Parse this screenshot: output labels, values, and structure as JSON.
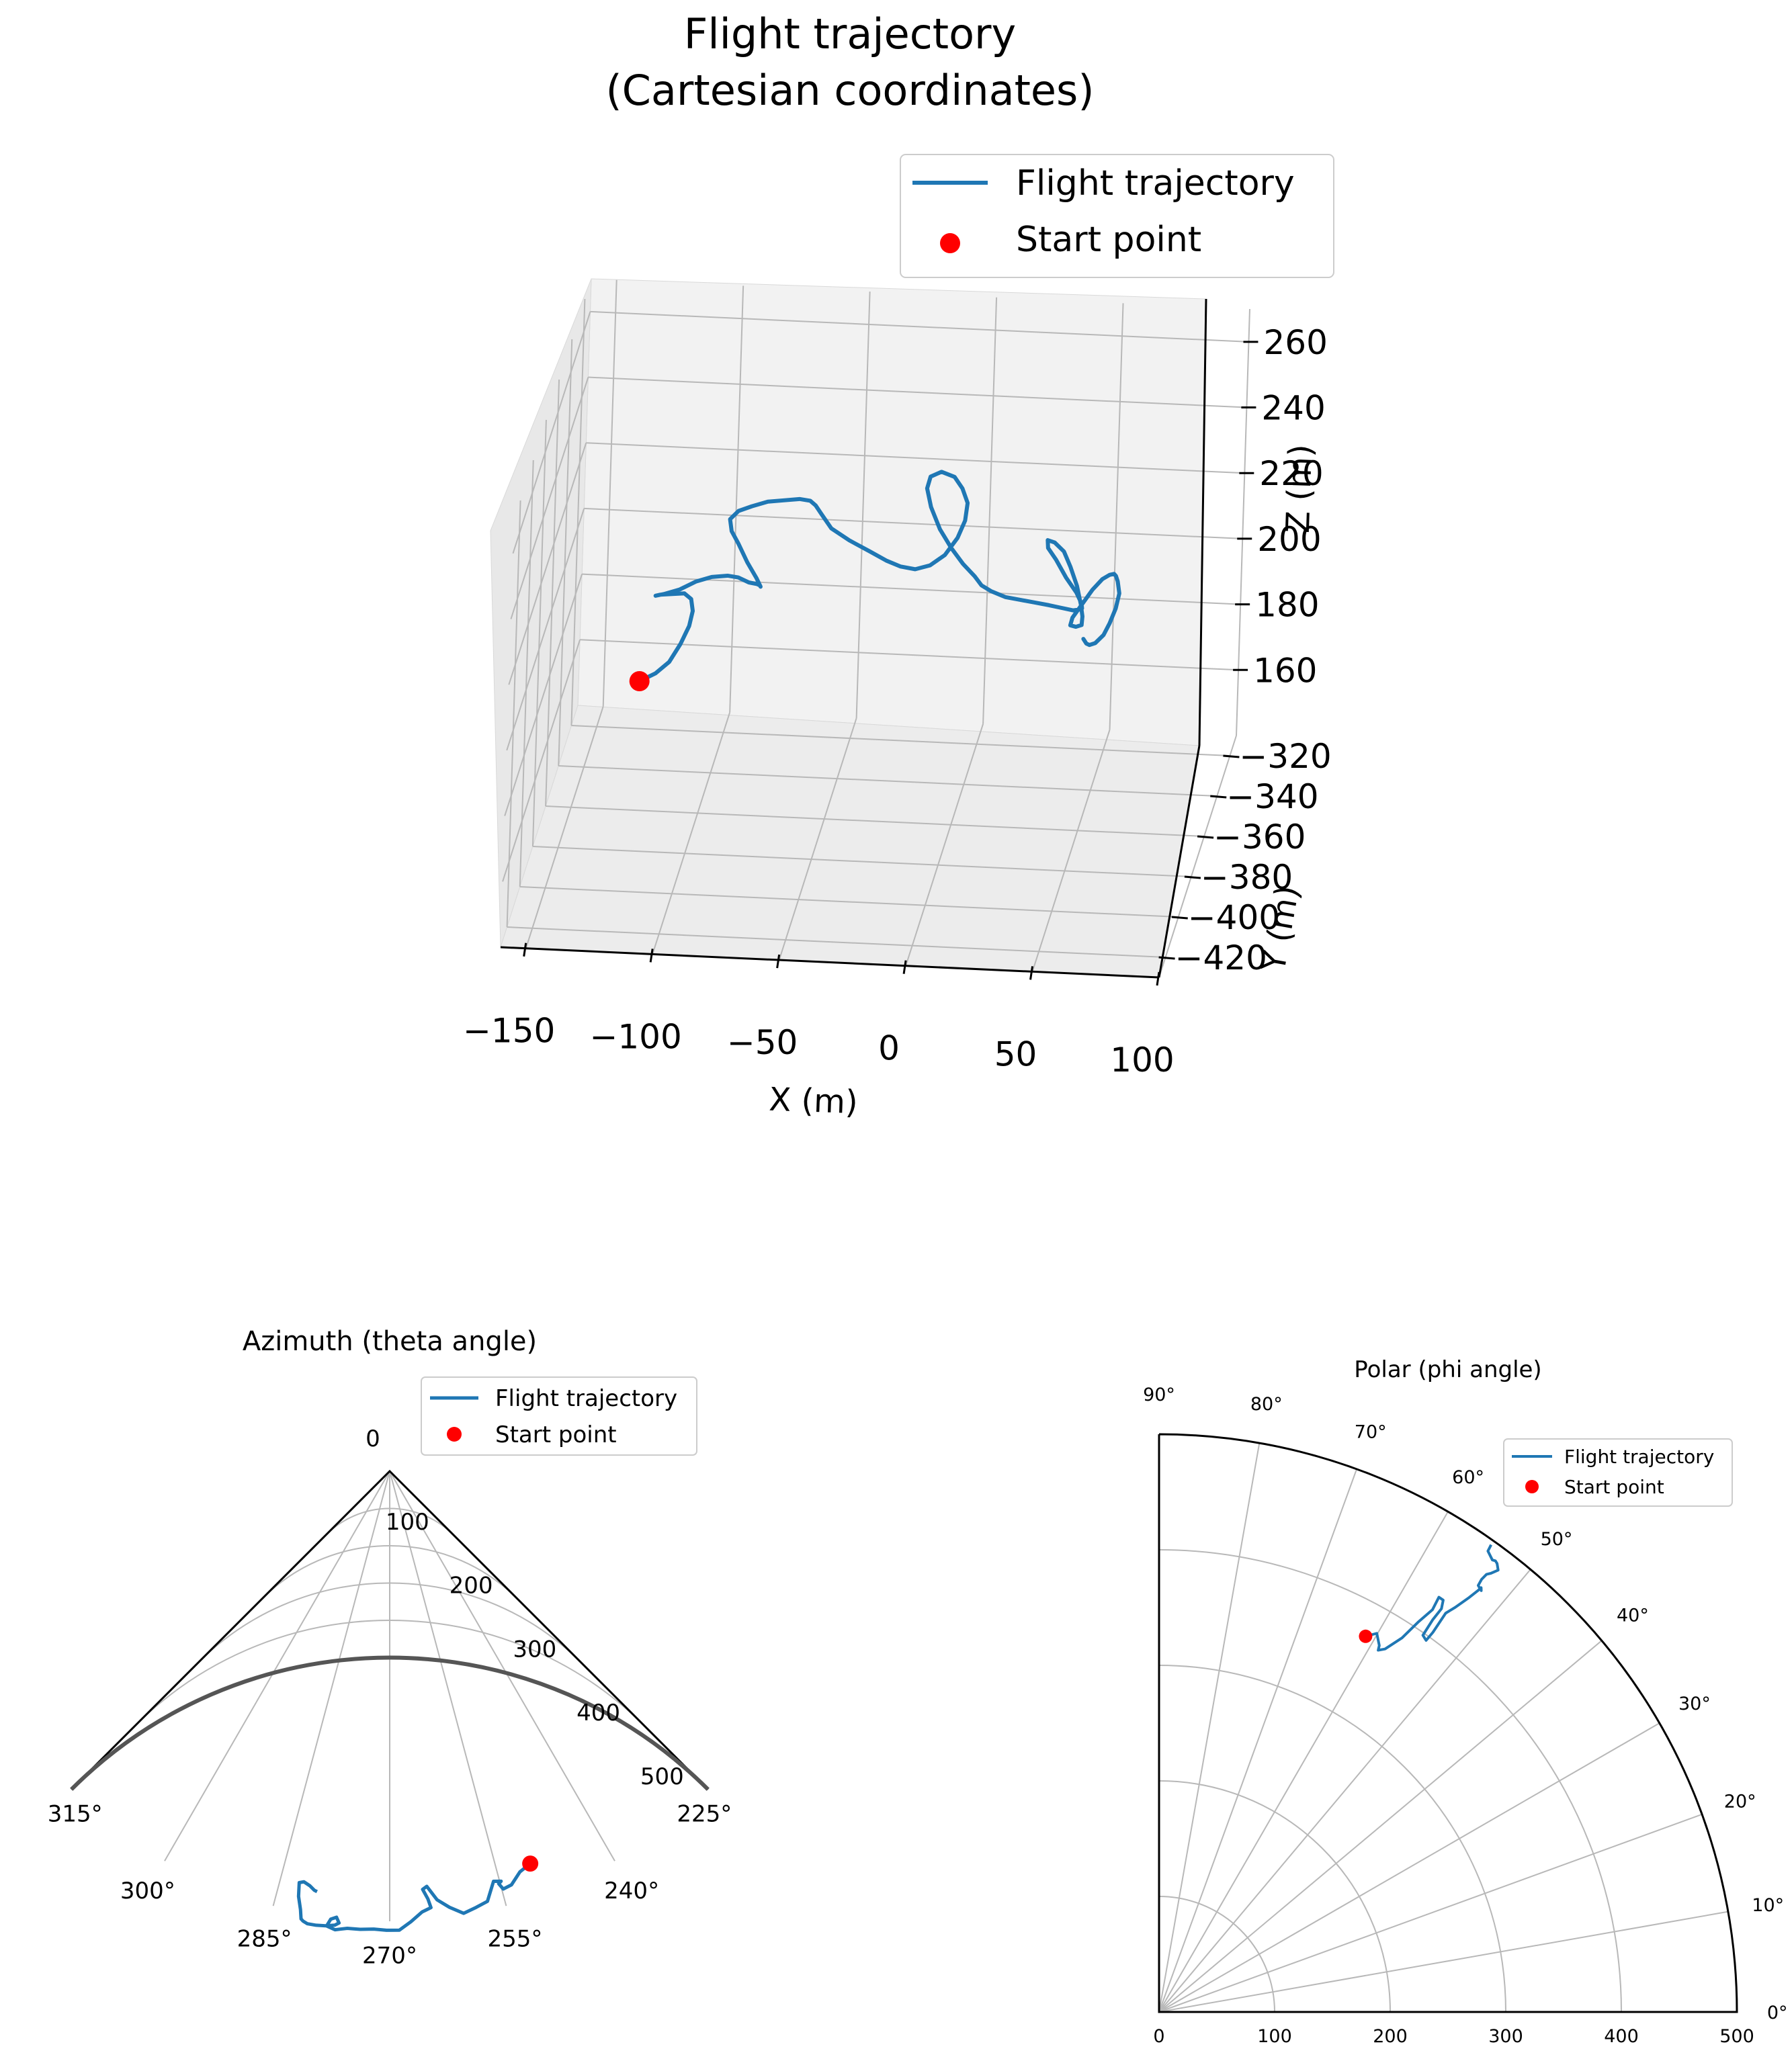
{
  "colors": {
    "trajectory": "#1f77b4",
    "start": "#ff0000",
    "grid": "#b0b0b0",
    "pane": "#f2f2f2"
  },
  "chart_data": [
    {
      "type": "line",
      "projection": "3d",
      "title": "Flight trajectory\n(Cartesian coordinates)",
      "title_lines": [
        "Flight trajectory",
        "(Cartesian coordinates)"
      ],
      "xlabel": "X (m)",
      "ylabel": "Y (m)",
      "zlabel": "Z (m)",
      "xticks": [
        "−150",
        "−100",
        "−50",
        "0",
        "50",
        "100"
      ],
      "yticks": [
        "−320",
        "−340",
        "−360",
        "−380",
        "−400",
        "−420"
      ],
      "zticks": [
        "160",
        "180",
        "200",
        "220",
        "240",
        "260"
      ],
      "xlim": [
        -160,
        100
      ],
      "ylim": [
        -430,
        -310
      ],
      "zlim": [
        140,
        270
      ],
      "legend": [
        "Flight trajectory",
        "Start point"
      ],
      "legend_loc": "upper right",
      "series": [
        {
          "name": "Flight trajectory",
          "x": [
            -128,
            -122,
            -117,
            -113,
            -110,
            -109,
            -110,
            -113,
            -118,
            -123,
            -125,
            -122,
            -116,
            -110,
            -104,
            -98,
            -94,
            -90,
            -87,
            -86,
            -86,
            -88,
            -92,
            -96,
            -99,
            -100,
            -97,
            -92,
            -86,
            -80,
            -74,
            -70,
            -68,
            -66,
            -62,
            -55,
            -47,
            -40,
            -34,
            -28,
            -22,
            -16,
            -11,
            -8,
            -7,
            -9,
            -12,
            -17,
            -21,
            -22,
            -20,
            -16,
            -11,
            -6,
            -1,
            2,
            6,
            12,
            18,
            24,
            30,
            35,
            40,
            43,
            44,
            44,
            42,
            38,
            34,
            31,
            31,
            34,
            38,
            41,
            44,
            46,
            47,
            47,
            45,
            43,
            44,
            48,
            52,
            56,
            59,
            61,
            62,
            63,
            64,
            63,
            61,
            59,
            56,
            54,
            53,
            52
          ],
          "y": [
            -345,
            -344,
            -343,
            -342,
            -341,
            -340,
            -339,
            -338,
            -337,
            -336,
            -335,
            -334,
            -333,
            -332,
            -331,
            -330,
            -329,
            -328,
            -327,
            -326,
            -325,
            -324,
            -323,
            -322,
            -321,
            -320,
            -319,
            -318,
            -317,
            -316,
            -315,
            -314,
            -313,
            -312,
            -311,
            -310,
            -310,
            -311,
            -312,
            -313,
            -314,
            -315,
            -316,
            -317,
            -318,
            -319,
            -320,
            -321,
            -322,
            -323,
            -324,
            -325,
            -326,
            -327,
            -328,
            -329,
            -330,
            -331,
            -332,
            -333,
            -334,
            -335,
            -336,
            -337,
            -338,
            -339,
            -340,
            -341,
            -342,
            -343,
            -344,
            -345,
            -346,
            -347,
            -348,
            -349,
            -350,
            -351,
            -352,
            -353,
            -354,
            -355,
            -356,
            -357,
            -358,
            -359,
            -360,
            -361,
            -362,
            -363,
            -364,
            -365,
            -366,
            -367,
            -368,
            -369
          ],
          "z": [
            170,
            172,
            175,
            180,
            185,
            189,
            192,
            193,
            192,
            191,
            190,
            190,
            191,
            193,
            194,
            194,
            193,
            191,
            190,
            189,
            188,
            190,
            194,
            199,
            202,
            205,
            207,
            208,
            209,
            209,
            209,
            208,
            206,
            203,
            198,
            194,
            191,
            189,
            188,
            188,
            190,
            194,
            200,
            206,
            212,
            217,
            221,
            223,
            222,
            219,
            214,
            208,
            203,
            199,
            196,
            194,
            193,
            192,
            192,
            192,
            192,
            192,
            192,
            193,
            194,
            196,
            200,
            205,
            211,
            215,
            218,
            218,
            216,
            212,
            207,
            202,
            199,
            197,
            197,
            198,
            201,
            206,
            211,
            215,
            217,
            218,
            218,
            217,
            214,
            210,
            206,
            203,
            201,
            201,
            202,
            204
          ]
        },
        {
          "name": "Start point",
          "type": "scatter",
          "x": [
            -128
          ],
          "y": [
            -345
          ],
          "z": [
            170
          ]
        }
      ]
    },
    {
      "type": "line",
      "projection": "polar",
      "title": "Azimuth (theta angle)",
      "theta_range_deg": [
        225,
        315
      ],
      "theta_zero": "bottom",
      "r_range": [
        0,
        500
      ],
      "r_origin_label": "0",
      "rticks": [
        "0",
        "100",
        "200",
        "300",
        "400",
        "500"
      ],
      "thetaticks": [
        "225°",
        "240°",
        "255°",
        "270°",
        "285°",
        "300°",
        "315°"
      ],
      "legend": [
        "Flight trajectory",
        "Start point"
      ],
      "legend_loc": "upper right",
      "series": [
        {
          "name": "Flight trajectory",
          "theta": [
            250.3,
            252,
            253.6,
            254.8,
            255.2,
            254.8,
            255.8,
            257.2,
            258.8,
            260.5,
            262.2,
            263.7,
            264.9,
            265.5,
            264.9,
            264.6,
            265.8,
            267.3,
            268.8,
            270.4,
            272,
            273.7,
            275.3,
            276.8,
            277.9,
            277.5,
            276.8,
            276.4,
            276.9,
            278,
            279.2,
            280.3,
            280.9,
            281.2,
            281.5,
            282.1,
            282.4,
            281.8,
            280.9,
            280.2,
            279.8
          ],
          "r": [
            463,
            468,
            479,
            481,
            474,
            472,
            470,
            490,
            494,
            498,
            489,
            479,
            463,
            466,
            477,
            487,
            491,
            501,
            510,
            510,
            509,
            510,
            510,
            513,
            510,
            502,
            499,
            505,
            508,
            510,
            511,
            511,
            509,
            507,
            497,
            483,
            468,
            466,
            469,
            473,
            474
          ]
        },
        {
          "name": "Start point",
          "type": "scatter",
          "theta": [
            250.3
          ],
          "r": [
            463
          ]
        }
      ]
    },
    {
      "type": "line",
      "projection": "polar",
      "title": "Polar (phi angle)",
      "theta_range_deg": [
        0,
        90
      ],
      "r_range": [
        0,
        500
      ],
      "rticks": [
        "0",
        "100",
        "200",
        "300",
        "400",
        "500"
      ],
      "thetaticks": [
        "0°",
        "10°",
        "20°",
        "30°",
        "40°",
        "50°",
        "60°",
        "70°",
        "80°",
        "90°"
      ],
      "legend": [
        "Flight trajectory",
        "Start point"
      ],
      "legend_loc": "upper right",
      "series": [
        {
          "name": "Flight trajectory",
          "theta": [
            61.2,
            60.1,
            59.0,
            58.8,
            58.1,
            57.0,
            56.4,
            55.8,
            56.0,
            55.4,
            55.0,
            55.1,
            55.0,
            54.3,
            54.2,
            54.3,
            53.8,
            53.2,
            52.9,
            52.8,
            52.6,
            53.2,
            53.3,
            53.2,
            52.9,
            52.5,
            53.0,
            53.3,
            53.6,
            54.5,
            54.6
          ],
          "r": [
            371,
            378,
            370,
            366,
            370,
            386,
            405,
            421,
            433,
            433,
            426,
            414,
            398,
            396,
            405,
            425,
            434,
            448,
            457,
            461,
            459,
            461,
            467,
            473,
            476,
            482,
            486,
            487,
            486,
            490,
            496
          ]
        },
        {
          "name": "Start point",
          "type": "scatter",
          "theta": [
            61.2
          ],
          "r": [
            371
          ]
        }
      ]
    }
  ]
}
